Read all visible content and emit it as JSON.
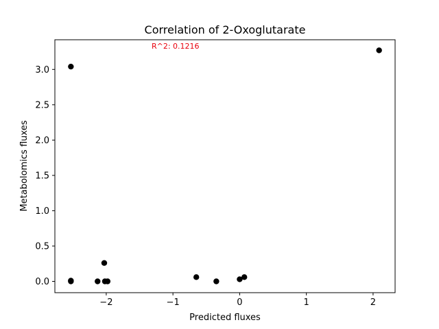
{
  "chart_data": {
    "type": "scatter",
    "title": "Correlation of 2-Oxoglutarate",
    "xlabel": "Predicted fluxes",
    "ylabel": "Metabolomics fluxes",
    "annotation": "R^2: 0.1216",
    "annotation_color": "#e8000b",
    "marker_color": "#000000",
    "xlim": [
      -2.77,
      2.33
    ],
    "ylim": [
      -0.16,
      3.42
    ],
    "xticks": [
      -2,
      -1,
      0,
      1,
      2
    ],
    "xtick_labels": [
      "−2",
      "−1",
      "0",
      "1",
      "2"
    ],
    "yticks": [
      0.0,
      0.5,
      1.0,
      1.5,
      2.0,
      2.5,
      3.0
    ],
    "ytick_labels": [
      "0.0",
      "0.5",
      "1.0",
      "1.5",
      "2.0",
      "2.5",
      "3.0"
    ],
    "grid": false,
    "points": [
      {
        "x": -2.53,
        "y": 3.04
      },
      {
        "x": 2.09,
        "y": 3.27
      },
      {
        "x": -2.53,
        "y": 0.01
      },
      {
        "x": -2.53,
        "y": 0.0
      },
      {
        "x": -2.13,
        "y": 0.0
      },
      {
        "x": -2.03,
        "y": 0.26
      },
      {
        "x": -2.02,
        "y": 0.0
      },
      {
        "x": -1.98,
        "y": 0.0
      },
      {
        "x": -0.65,
        "y": 0.06
      },
      {
        "x": -0.35,
        "y": 0.0
      },
      {
        "x": 0.0,
        "y": 0.03
      },
      {
        "x": 0.07,
        "y": 0.06
      }
    ]
  }
}
